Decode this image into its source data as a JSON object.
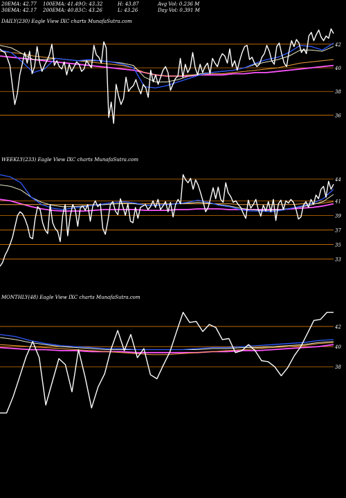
{
  "header": {
    "stats": [
      [
        "20EMA: 42.77",
        "100EMA: 41.49",
        "O: 43.32",
        "H: 43.87",
        "Avg Vol: 0.236  M"
      ],
      [
        "30EMA: 42.17",
        "200EMA: 40.83",
        "C: 43.26",
        "L: 43.26",
        "Day Vol: 0.391  M"
      ]
    ]
  },
  "colors": {
    "background": "#000000",
    "price": "#ffffff",
    "ema20": "#2f5cff",
    "ema30": "#e8e8c8",
    "ema100": "#f4a03c",
    "ema200": "#ff55ff",
    "gridline": "#ff8c00"
  },
  "chart_data": [
    {
      "type": "line",
      "title": "DAILY(230) Eagle  View  IXC charts MunafaSutra.com",
      "ylim": [
        35.2,
        43.4
      ],
      "yticks": [
        42,
        40,
        38,
        36
      ],
      "grid": true,
      "series": [
        {
          "name": "price",
          "values": [
            41.6,
            41.4,
            41.3,
            40.8,
            40.2,
            38.5,
            36.9,
            37.8,
            39.4,
            40.3,
            41.3,
            40.4,
            41.4,
            39.5,
            40.1,
            41.8,
            40.5,
            39.7,
            40.2,
            40.6,
            41.1,
            42.0,
            40.2,
            40.6,
            40.1,
            39.9,
            40.5,
            39.4,
            40.3,
            39.7,
            40.1,
            40.5,
            40.3,
            39.7,
            39.9,
            40.6,
            40.3,
            40.0,
            41.9,
            41.1,
            40.9,
            40.4,
            42.2,
            41.7,
            35.8,
            37.1,
            35.3,
            38.6,
            37.6,
            36.9,
            37.4,
            39.2,
            38.0,
            38.3,
            38.5,
            39.0,
            38.3,
            37.8,
            38.6,
            38.3,
            37.5,
            39.8,
            38.8,
            39.4,
            38.6,
            39.2,
            39.8,
            40.1,
            39.6,
            38.1,
            38.6,
            39.1,
            39.3,
            40.8,
            39.2,
            40.3,
            39.6,
            40.0,
            41.3,
            40.0,
            39.4,
            40.3,
            39.6,
            40.1,
            40.4,
            39.5,
            40.8,
            40.4,
            40.1,
            40.8,
            41.2,
            41.0,
            40.4,
            41.6,
            40.1,
            40.6,
            39.8,
            40.6,
            41.3,
            41.8,
            41.9,
            40.7,
            40.9,
            40.4,
            40.1,
            40.3,
            40.9,
            41.2,
            41.9,
            41.4,
            40.6,
            40.3,
            41.8,
            42.1,
            41.2,
            40.4,
            40.1,
            41.4,
            42.3,
            41.8,
            42.4,
            42.1,
            41.3,
            41.6,
            41.2,
            42.7,
            43.0,
            42.3,
            42.8,
            43.2,
            42.6,
            42.3,
            42.7,
            42.5,
            43.3,
            42.9
          ]
        },
        {
          "name": "EMA20",
          "values": [
            41.5,
            41.3,
            40.5,
            39.6,
            39.9,
            40.8,
            40.7,
            40.6,
            40.7,
            40.6,
            40.5,
            40.3,
            40.0,
            38.4,
            38.3,
            38.5,
            38.8,
            39.1,
            39.4,
            39.6,
            39.7,
            39.8,
            40.0,
            40.4,
            40.7,
            40.9,
            41.3,
            41.9,
            41.8,
            41.5,
            42.1
          ]
        },
        {
          "name": "EMA30",
          "values": [
            41.9,
            41.7,
            41.2,
            40.7,
            40.7,
            40.8,
            40.7,
            40.6,
            40.6,
            40.6,
            40.5,
            40.4,
            40.2,
            39.2,
            38.8,
            38.8,
            39.0,
            39.3,
            39.5,
            39.6,
            39.7,
            39.8,
            40.0,
            40.3,
            40.5,
            40.7,
            41.0,
            41.5,
            41.5,
            41.4,
            41.8
          ]
        },
        {
          "name": "EMA100",
          "values": [
            41.4,
            41.3,
            41.2,
            41.0,
            40.9,
            40.8,
            40.7,
            40.6,
            40.5,
            40.4,
            40.3,
            40.2,
            40.0,
            39.6,
            39.4,
            39.3,
            39.3,
            39.4,
            39.4,
            39.5,
            39.5,
            39.6,
            39.7,
            39.8,
            39.9,
            40.0,
            40.2,
            40.4,
            40.5,
            40.6,
            40.7
          ]
        },
        {
          "name": "EMA200",
          "values": [
            41.0,
            40.9,
            40.8,
            40.7,
            40.6,
            40.5,
            40.4,
            40.3,
            40.2,
            40.1,
            40.0,
            39.9,
            39.8,
            39.6,
            39.4,
            39.3,
            39.3,
            39.3,
            39.4,
            39.4,
            39.4,
            39.5,
            39.5,
            39.6,
            39.6,
            39.7,
            39.8,
            39.9,
            40.0,
            40.1,
            40.2
          ]
        }
      ]
    },
    {
      "type": "line",
      "title": "WEEKLY(233) Eagle  View  IXC charts MunafaSutra.com",
      "ylim": [
        32.0,
        45.8
      ],
      "yticks": [
        44,
        41,
        39,
        37,
        35,
        33
      ],
      "grid": true,
      "series": [
        {
          "name": "price",
          "values": [
            32.0,
            32.5,
            33.5,
            34.2,
            35.0,
            36.0,
            37.5,
            39.0,
            39.5,
            39.2,
            38.5,
            37.5,
            36.0,
            35.8,
            38.5,
            40.2,
            39.8,
            38.0,
            37.0,
            36.5,
            40.5,
            38.0,
            37.2,
            36.8,
            35.4,
            39.0,
            40.5,
            36.2,
            38.9,
            40.5,
            39.8,
            37.5,
            40.0,
            40.3,
            39.7,
            40.5,
            38.2,
            40.3,
            41.0,
            40.2,
            40.6,
            37.2,
            36.4,
            38.2,
            40.5,
            40.9,
            39.6,
            39.1,
            41.3,
            40.2,
            39.0,
            40.6,
            38.2,
            38.0,
            40.1,
            38.6,
            40.1,
            40.3,
            40.5,
            39.8,
            40.2,
            41.0,
            40.1,
            41.2,
            39.8,
            40.3,
            40.9,
            39.5,
            40.8,
            38.8,
            40.5,
            41.2,
            40.6,
            44.6,
            43.9,
            43.5,
            44.1,
            42.6,
            43.9,
            43.2,
            42.1,
            40.9,
            39.5,
            40.1,
            41.4,
            42.8,
            41.3,
            42.9,
            41.2,
            40.8,
            43.5,
            42.1,
            41.6,
            40.8,
            41.0,
            40.5,
            40.1,
            39.3,
            38.6,
            41.1,
            40.0,
            40.5,
            41.2,
            39.8,
            38.9,
            40.4,
            39.6,
            40.9,
            39.5,
            41.2,
            38.3,
            40.6,
            41.1,
            39.8,
            41.0,
            40.7,
            41.2,
            40.8,
            39.9,
            38.5,
            38.8,
            40.4,
            40.9,
            40.1,
            41.2,
            40.5,
            41.8,
            41.3,
            42.6,
            43.0,
            41.5,
            43.7,
            42.6,
            43.3
          ]
        },
        {
          "name": "EMA20",
          "values": [
            44.6,
            44.3,
            43.5,
            41.5,
            40.5,
            40.0,
            39.8,
            40.0,
            40.2,
            40.4,
            40.6,
            40.8,
            40.9,
            40.7,
            40.4,
            40.4,
            40.5,
            40.6,
            40.8,
            41.1,
            40.8,
            40.4,
            40.2,
            39.8,
            39.6,
            39.6,
            39.5,
            39.7,
            40.0,
            40.3,
            40.7,
            41.3,
            42.6
          ]
        },
        {
          "name": "EMA30",
          "values": [
            43.2,
            43.0,
            42.5,
            41.5,
            40.8,
            40.4,
            40.2,
            40.2,
            40.3,
            40.4,
            40.5,
            40.6,
            40.7,
            40.6,
            40.4,
            40.4,
            40.5,
            40.6,
            40.7,
            40.8,
            40.7,
            40.5,
            40.3,
            40.0,
            39.8,
            39.7,
            39.7,
            39.8,
            40.0,
            40.2,
            40.5,
            40.9,
            41.9
          ]
        },
        {
          "name": "EMA100",
          "values": [
            40.5,
            40.5,
            40.5,
            40.5,
            40.5,
            40.5,
            40.5,
            40.5,
            40.5,
            40.5,
            40.5,
            40.6,
            40.6,
            40.6,
            40.6,
            40.6,
            40.6,
            40.6,
            40.6,
            40.6,
            40.6,
            40.6,
            40.6,
            40.5,
            40.5,
            40.5,
            40.5,
            40.5,
            40.5,
            40.6,
            40.6,
            40.7,
            40.9
          ]
        },
        {
          "name": "EMA200",
          "values": [
            41.2,
            41.0,
            40.6,
            40.2,
            39.9,
            39.7,
            39.6,
            39.6,
            39.6,
            39.7,
            39.8,
            39.8,
            39.8,
            39.8,
            39.7,
            39.7,
            39.7,
            39.8,
            39.8,
            39.9,
            39.9,
            39.9,
            39.8,
            39.8,
            39.8,
            39.8,
            39.8,
            39.8,
            39.9,
            40.0,
            40.1,
            40.3,
            40.6
          ]
        }
      ]
    },
    {
      "type": "line",
      "title": "MONTHLY(48) Eagle  View  IXC charts MunafaSutra.com",
      "ylim": [
        33.2,
        44.2
      ],
      "yticks": [
        42,
        40,
        38
      ],
      "grid": true,
      "series": [
        {
          "name": "price",
          "values": [
            33.4,
            33.4,
            35.0,
            37.0,
            39.0,
            40.5,
            38.9,
            34.2,
            36.5,
            38.8,
            38.2,
            35.5,
            39.7,
            37.0,
            33.9,
            36.0,
            37.3,
            39.8,
            41.6,
            39.6,
            41.2,
            38.9,
            39.8,
            37.2,
            36.8,
            38.2,
            39.5,
            41.5,
            43.4,
            42.4,
            42.5,
            41.5,
            42.2,
            41.9,
            40.7,
            40.8,
            39.4,
            39.6,
            40.2,
            39.6,
            38.6,
            38.5,
            38.0,
            37.1,
            37.9,
            39.1,
            40.0,
            41.3,
            42.6,
            42.7,
            43.4,
            43.4
          ]
        },
        {
          "name": "EMA20",
          "values": [
            41.2,
            41.0,
            40.6,
            40.3,
            40.1,
            40.0,
            39.9,
            39.8,
            39.8,
            39.7,
            39.7,
            39.7,
            39.7,
            39.8,
            39.9,
            39.9,
            40.0,
            40.1,
            40.2,
            40.3,
            40.4,
            40.6,
            40.7
          ]
        },
        {
          "name": "EMA30",
          "values": [
            40.9,
            40.7,
            40.4,
            40.2,
            40.0,
            39.9,
            39.8,
            39.7,
            39.7,
            39.7,
            39.7,
            39.7,
            39.7,
            39.7,
            39.8,
            39.8,
            39.9,
            39.9,
            40.0,
            40.1,
            40.2,
            40.4,
            40.5
          ]
        },
        {
          "name": "EMA100",
          "values": [
            40.2,
            40.1,
            40.0,
            39.9,
            39.8,
            39.7,
            39.6,
            39.5,
            39.4,
            39.3,
            39.2,
            39.2,
            39.3,
            39.4,
            39.5,
            39.6,
            39.7,
            39.8,
            39.9,
            40.0,
            40.1,
            40.3,
            40.4
          ]
        },
        {
          "name": "EMA200",
          "values": [
            39.9,
            39.8,
            39.7,
            39.7,
            39.6,
            39.6,
            39.5,
            39.5,
            39.5,
            39.4,
            39.4,
            39.4,
            39.4,
            39.4,
            39.5,
            39.5,
            39.6,
            39.6,
            39.7,
            39.8,
            39.9,
            40.0,
            40.2
          ]
        }
      ]
    }
  ]
}
